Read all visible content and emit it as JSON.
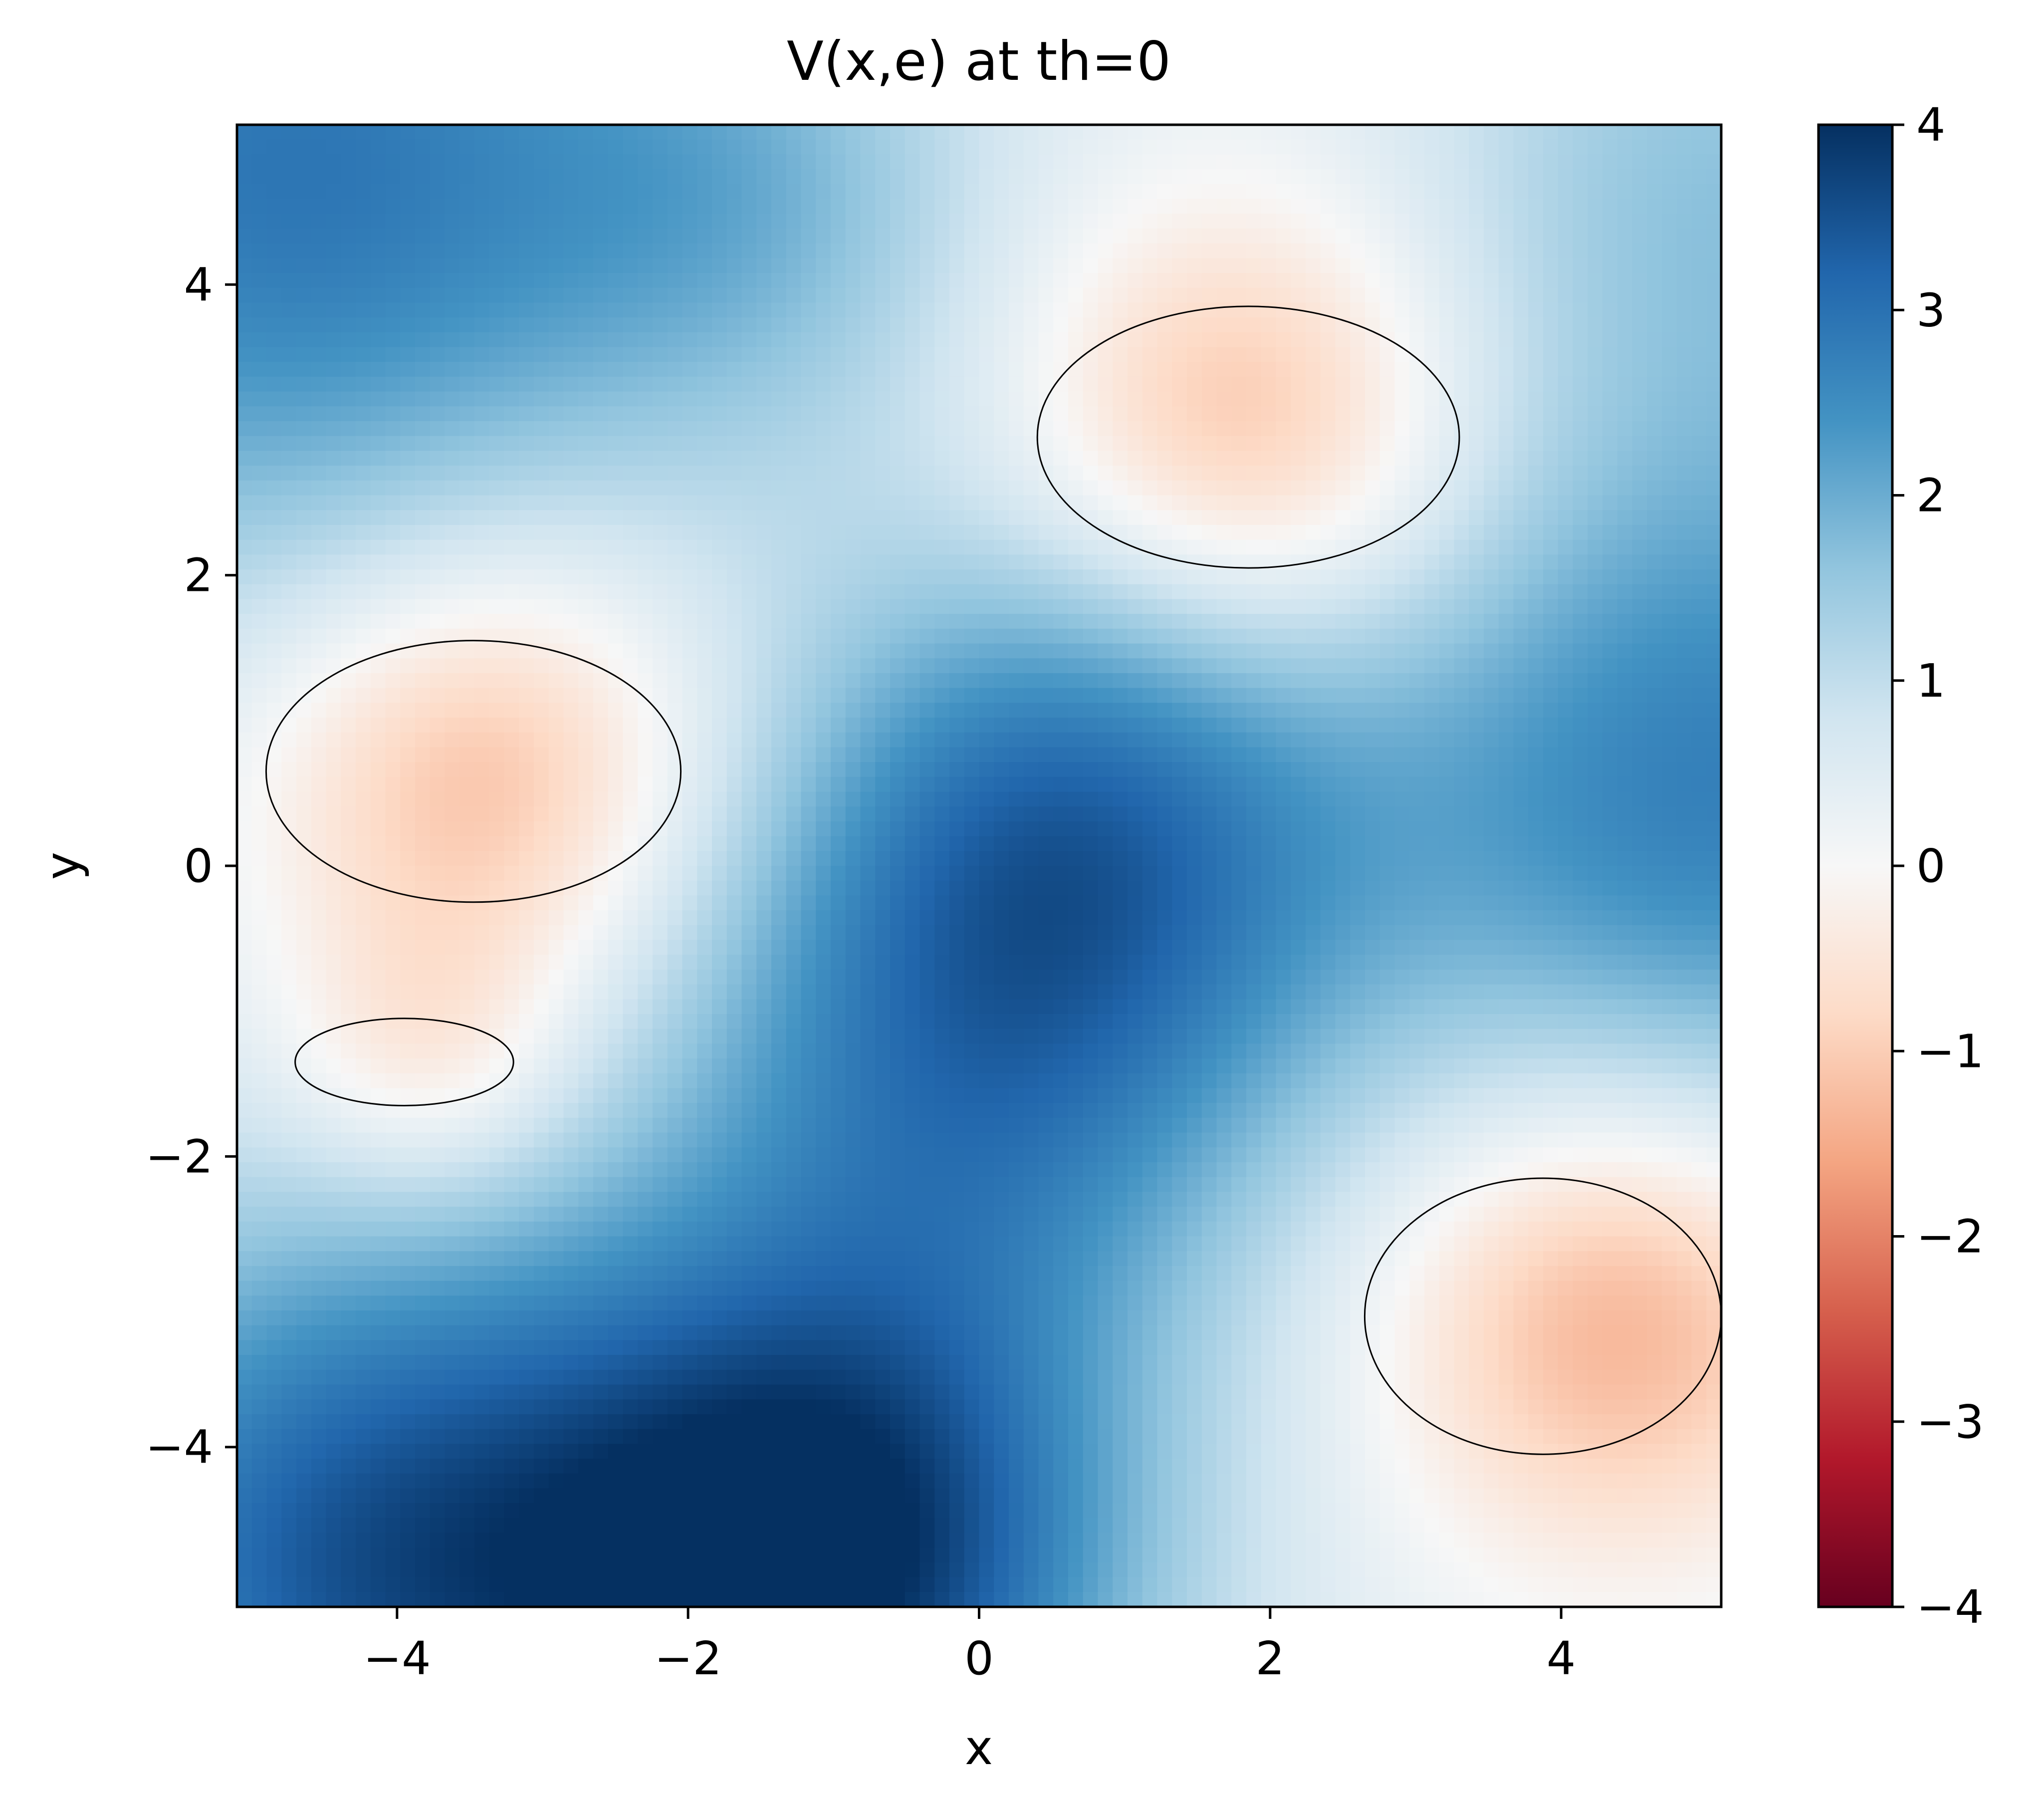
{
  "chart_data": {
    "type": "heatmap",
    "title": "V(x,e) at th=0",
    "xlabel": "x",
    "ylabel": "y",
    "xlim": [
      -5.1,
      5.1
    ],
    "ylim": [
      -5.1,
      5.1
    ],
    "xticks": [
      -4,
      -2,
      0,
      2,
      4
    ],
    "yticks": [
      -4,
      -2,
      0,
      2,
      4
    ],
    "xtick_labels": [
      "−4",
      "−2",
      "0",
      "2",
      "4"
    ],
    "ytick_labels": [
      "−4",
      "−2",
      "0",
      "2",
      "4"
    ],
    "grid": false,
    "colormap": "RdBu",
    "colorbar": {
      "range": [
        -4,
        4
      ],
      "ticks": [
        4,
        3,
        2,
        1,
        0,
        -1,
        -2,
        -3,
        -4
      ],
      "tick_labels": [
        "4",
        "3",
        "2",
        "1",
        "0",
        "−1",
        "−2",
        "−3",
        "−4"
      ]
    },
    "regions_below_zero": [
      {
        "name": "upper-right basin",
        "x_range": [
          0.4,
          3.3
        ],
        "y_range": [
          2.05,
          3.85
        ],
        "min_value": -0.5
      },
      {
        "name": "left basin",
        "x_range": [
          -4.9,
          -2.05
        ],
        "y_range": [
          -0.25,
          1.55
        ],
        "min_value": -0.5
      },
      {
        "name": "lower-left small basin",
        "x_range": [
          -4.7,
          -3.2
        ],
        "y_range": [
          -1.65,
          -1.05
        ],
        "min_value": -0.1
      },
      {
        "name": "lower-right basin",
        "x_range": [
          2.65,
          5.1
        ],
        "y_range": [
          -4.05,
          -2.15
        ],
        "min_value": -0.5
      }
    ],
    "maximum": {
      "x": -1.0,
      "y": -4.8,
      "value": 4.0
    },
    "contour_level": 0,
    "contour_color": "#000000"
  },
  "colors": {
    "low": "#67001f",
    "mid": "#f7f7f7",
    "high": "#053061"
  }
}
